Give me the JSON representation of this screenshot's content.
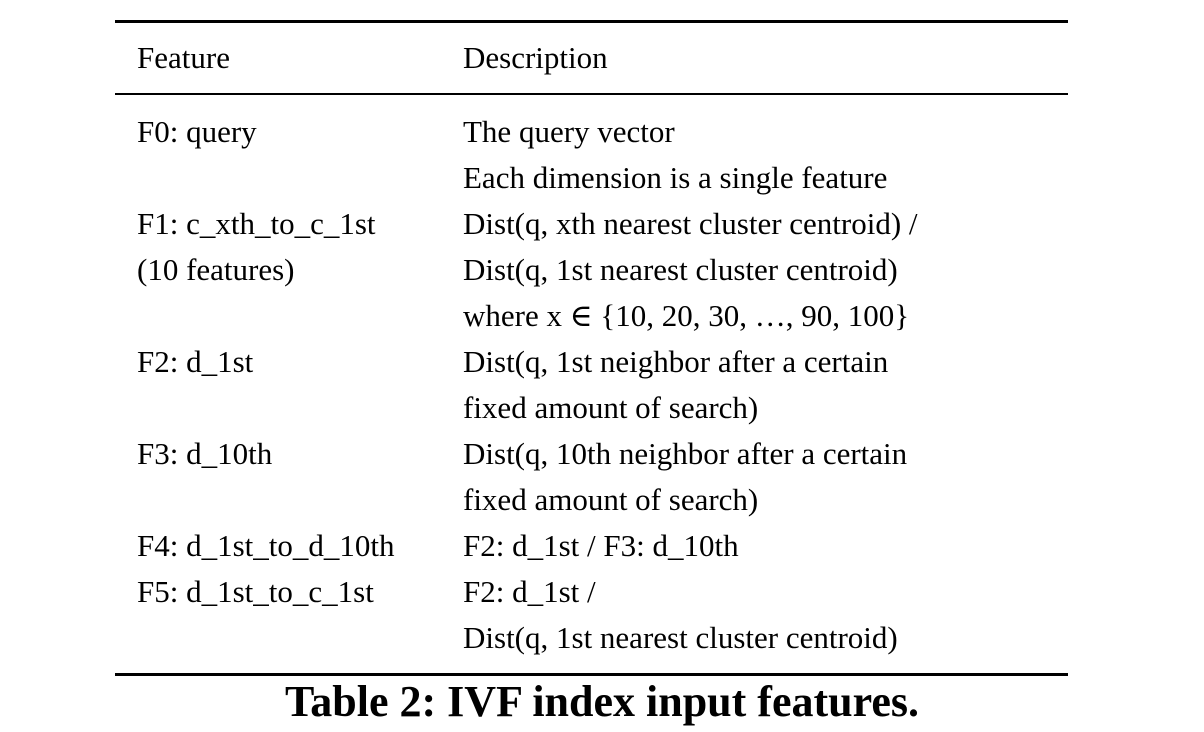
{
  "table": {
    "headers": {
      "feature": "Feature",
      "description": "Description"
    },
    "rows": [
      {
        "feature": [
          "F0: query"
        ],
        "description": [
          "The query vector",
          "Each dimension is a single feature"
        ]
      },
      {
        "feature": [
          "F1: c_xth_to_c_1st",
          "(10 features)"
        ],
        "description": [
          "Dist(q, xth nearest cluster centroid) /",
          "Dist(q, 1st nearest cluster centroid)",
          "where x ∈ {10, 20, 30, …, 90, 100}"
        ]
      },
      {
        "feature": [
          "F2: d_1st"
        ],
        "description": [
          "Dist(q, 1st neighbor after a certain",
          "fixed amount of search)"
        ]
      },
      {
        "feature": [
          "F3: d_10th"
        ],
        "description": [
          "Dist(q, 10th neighbor after a certain",
          "fixed amount of search)"
        ]
      },
      {
        "feature": [
          "F4: d_1st_to_d_10th"
        ],
        "description": [
          "F2: d_1st / F3: d_10th"
        ]
      },
      {
        "feature": [
          "F5: d_1st_to_c_1st"
        ],
        "description": [
          "F2: d_1st /",
          "Dist(q, 1st nearest cluster centroid)"
        ]
      }
    ]
  },
  "caption": "Table 2: IVF index input features."
}
